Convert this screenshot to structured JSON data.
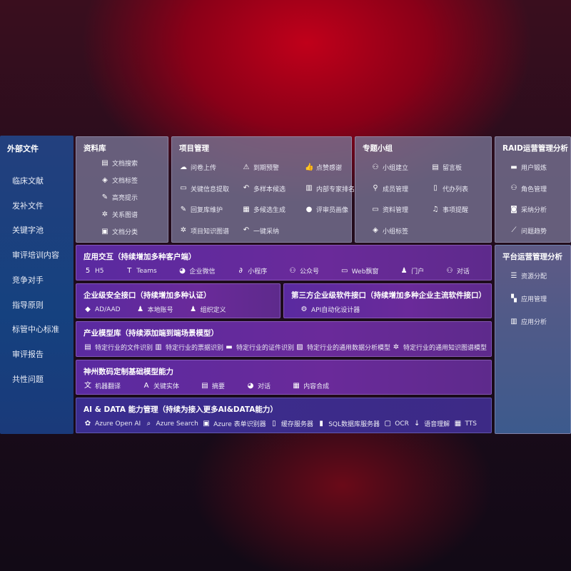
{
  "external": {
    "title": "外部文件",
    "items": [
      "临床文献",
      "发补文件",
      "关键字池",
      "审评培训内容",
      "竞争对手",
      "指导原则",
      "标管中心标准",
      "审评报告",
      "共性问题"
    ]
  },
  "library": {
    "title": "资料库",
    "items": [
      {
        "label": "文档搜索",
        "icon": "document-search-icon"
      },
      {
        "label": "文档标签",
        "icon": "tag-icon"
      },
      {
        "label": "高亮提示",
        "icon": "pen-icon"
      },
      {
        "label": "关系图谱",
        "icon": "graph-icon"
      },
      {
        "label": "文档分类",
        "icon": "document-stack-icon"
      }
    ]
  },
  "project": {
    "title": "项目管理",
    "items": [
      {
        "label": "问卷上传",
        "icon": "cloud-upload-icon"
      },
      {
        "label": "到期预警",
        "icon": "alarm-icon"
      },
      {
        "label": "点赞感谢",
        "icon": "thumbs-up-icon"
      },
      {
        "label": "关键信息提取",
        "icon": "window-icon"
      },
      {
        "label": "多样本候选",
        "icon": "reply-icon"
      },
      {
        "label": "内部专家排名",
        "icon": "podium-icon"
      },
      {
        "label": "回复库维护",
        "icon": "edit-icon"
      },
      {
        "label": "多候选生成",
        "icon": "puzzle-icon"
      },
      {
        "label": "评审员画像",
        "icon": "user-icon"
      },
      {
        "label": "项目知识图谱",
        "icon": "graph-icon"
      },
      {
        "label": "一键采纳",
        "icon": "reply-icon"
      }
    ]
  },
  "group": {
    "title": "专题小组",
    "items": [
      {
        "label": "小组建立",
        "icon": "users-icon"
      },
      {
        "label": "留言板",
        "icon": "bbs-icon"
      },
      {
        "label": "成员管理",
        "icon": "user-add-icon"
      },
      {
        "label": "代办列表",
        "icon": "clipboard-icon"
      },
      {
        "label": "资料管理",
        "icon": "folder-icon"
      },
      {
        "label": "事项提醒",
        "icon": "bell-icon"
      },
      {
        "label": "小组标签",
        "icon": "tag-icon"
      }
    ]
  },
  "raid": {
    "title": "RAID运营管理分析",
    "items": [
      {
        "label": "用户锻炼",
        "icon": "id-card-icon"
      },
      {
        "label": "角色管理",
        "icon": "users-icon"
      },
      {
        "label": "采纳分析",
        "icon": "qa-icon"
      },
      {
        "label": "问题趋势",
        "icon": "trend-icon"
      }
    ]
  },
  "platform": {
    "title": "平台运营管理分析",
    "items": [
      {
        "label": "资源分配",
        "icon": "list-icon"
      },
      {
        "label": "应用管理",
        "icon": "apps-icon"
      },
      {
        "label": "应用分析",
        "icon": "chart-icon"
      }
    ]
  },
  "app": {
    "title": "应用交互（持续增加多种客户端）",
    "items": [
      {
        "label": "H5",
        "icon": "html5-icon"
      },
      {
        "label": "Teams",
        "icon": "teams-icon"
      },
      {
        "label": "企业微信",
        "icon": "wechat-icon"
      },
      {
        "label": "小程序",
        "icon": "mini-program-icon"
      },
      {
        "label": "公众号",
        "icon": "users-icon"
      },
      {
        "label": "Web飘窗",
        "icon": "window-icon"
      },
      {
        "label": "门户",
        "icon": "portal-icon"
      },
      {
        "label": "对话",
        "icon": "chat-users-icon"
      }
    ]
  },
  "security": {
    "title": "企业级安全接口（持续增加多种认证）",
    "items": [
      {
        "label": "AD/AAD",
        "icon": "diamond-icon"
      },
      {
        "label": "本地账号",
        "icon": "user-lock-icon"
      },
      {
        "label": "组织定义",
        "icon": "org-icon"
      }
    ]
  },
  "third": {
    "title": "第三方企业级软件接口（持续增加多种企业主流软件接口）",
    "items": [
      {
        "label": "API自动化设计器",
        "icon": "gear-icon"
      }
    ]
  },
  "industry": {
    "title": "产业模型库（持续添加端到端场景模型）",
    "items": [
      {
        "label": "特定行业的文件识别",
        "icon": "document-icon"
      },
      {
        "label": "特定行业的票据识别",
        "icon": "receipt-icon"
      },
      {
        "label": "特定行业的证件识别",
        "icon": "id-card-icon"
      },
      {
        "label": "特定行业的通用数据分析模型",
        "icon": "image-icon"
      },
      {
        "label": "特定行业的通用知识图谱模型",
        "icon": "graph-icon"
      }
    ]
  },
  "base": {
    "title": "神州数码定制基础模型能力",
    "items": [
      {
        "label": "机器翻译",
        "icon": "translate-icon"
      },
      {
        "label": "关键实体",
        "icon": "entity-icon"
      },
      {
        "label": "摘要",
        "icon": "document-icon"
      },
      {
        "label": "对话",
        "icon": "chat-icon"
      },
      {
        "label": "内容合成",
        "icon": "puzzle-icon"
      }
    ]
  },
  "ai": {
    "title": "AI & DATA 能力管理（持续为接入更多AI&DATA能力）",
    "items": [
      {
        "label": "Azure Open AI",
        "icon": "openai-icon"
      },
      {
        "label": "Azure Search",
        "icon": "search-icon"
      },
      {
        "label": "Azure 表单识别器",
        "icon": "form-icon"
      },
      {
        "label": "缓存服务器",
        "icon": "cache-icon"
      },
      {
        "label": "SQL数据库服务器",
        "icon": "database-icon"
      },
      {
        "label": "OCR",
        "icon": "ocr-icon"
      },
      {
        "label": "语音理解",
        "icon": "speech-icon"
      },
      {
        "label": "TTS",
        "icon": "tts-icon"
      }
    ]
  }
}
